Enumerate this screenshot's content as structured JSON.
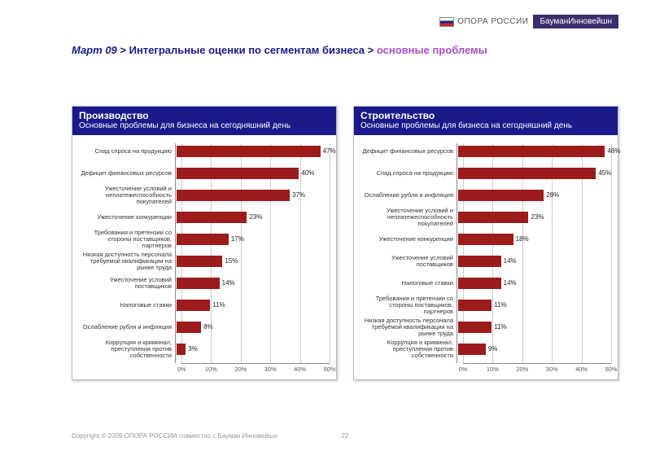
{
  "logo": {
    "opora": "ОПОРА РОССИИ",
    "bauman": "БауманИнновейшн"
  },
  "breadcrumb": {
    "month": "Март 09",
    "sep": ">",
    "middle": "Интегральные оценки по сегментам бизнеса",
    "current": "основные проблемы"
  },
  "panel_subtitle": "Основные проблемы для бизнеса на сегодняшний день",
  "footer": {
    "copyright": "Copyright © 2009 ОПОРА РОССИИ совместно с Бауман Инновейшн",
    "page": "22"
  },
  "colors": {
    "bar": "#9c1b1b",
    "header_bg": "#1a1a8a",
    "grid": "#cccccc",
    "axis": "#888888",
    "text": "#333333",
    "background": "#ffffff"
  },
  "charts": [
    {
      "title": "Производство",
      "type": "bar",
      "xmax": 50,
      "ticks": [
        0,
        10,
        20,
        30,
        40,
        50
      ],
      "tick_labels": [
        "0%",
        "10%",
        "20%",
        "30%",
        "40%",
        "50%"
      ],
      "rows": [
        {
          "label": "Спад спроса на продукцию",
          "value": 47,
          "value_label": "47%"
        },
        {
          "label": "Дефицит финансовых ресурсов",
          "value": 40,
          "value_label": "40%"
        },
        {
          "label": "Ужесточение условий и неплатежеспособность покупателей",
          "value": 37,
          "value_label": "37%"
        },
        {
          "label": "Ужесточение конкуренции",
          "value": 23,
          "value_label": "23%"
        },
        {
          "label": "Требования и претензии со стороны поставщиков, партнеров",
          "value": 17,
          "value_label": "17%"
        },
        {
          "label": "Низкая доступность персонала требуемой квалификации на рынке труда",
          "value": 15,
          "value_label": "15%"
        },
        {
          "label": "Ужесточение условий поставщиков",
          "value": 14,
          "value_label": "14%"
        },
        {
          "label": "Налоговые ставки",
          "value": 11,
          "value_label": "11%"
        },
        {
          "label": "Ослабление рубля и инфляция",
          "value": 8,
          "value_label": "8%"
        },
        {
          "label": "Коррупция и криминал, преступления против собственности",
          "value": 3,
          "value_label": "3%"
        }
      ]
    },
    {
      "title": "Строительство",
      "type": "bar",
      "xmax": 50,
      "ticks": [
        0,
        10,
        20,
        30,
        40,
        50
      ],
      "tick_labels": [
        "0%",
        "10%",
        "20%",
        "30%",
        "40%",
        "50%"
      ],
      "rows": [
        {
          "label": "Дефицит финансовых ресурсов",
          "value": 48,
          "value_label": "48%"
        },
        {
          "label": "Спад спроса на продукцию",
          "value": 45,
          "value_label": "45%"
        },
        {
          "label": "Ослабление рубля и инфляция",
          "value": 28,
          "value_label": "28%"
        },
        {
          "label": "Ужесточение условий и неплатежеспособность покупателей",
          "value": 23,
          "value_label": "23%"
        },
        {
          "label": "Ужесточение конкуренции",
          "value": 18,
          "value_label": "18%"
        },
        {
          "label": "Ужесточение условий поставщиков",
          "value": 14,
          "value_label": "14%"
        },
        {
          "label": "Налоговые ставки",
          "value": 14,
          "value_label": "14%"
        },
        {
          "label": "Требования и претензии со стороны поставщиков, партнеров",
          "value": 11,
          "value_label": "11%"
        },
        {
          "label": "Низкая доступность персонала требуемой квалификации на рынке труда",
          "value": 11,
          "value_label": "11%"
        },
        {
          "label": "Коррупция и криминал, преступления против собственности",
          "value": 9,
          "value_label": "9%"
        }
      ]
    }
  ]
}
